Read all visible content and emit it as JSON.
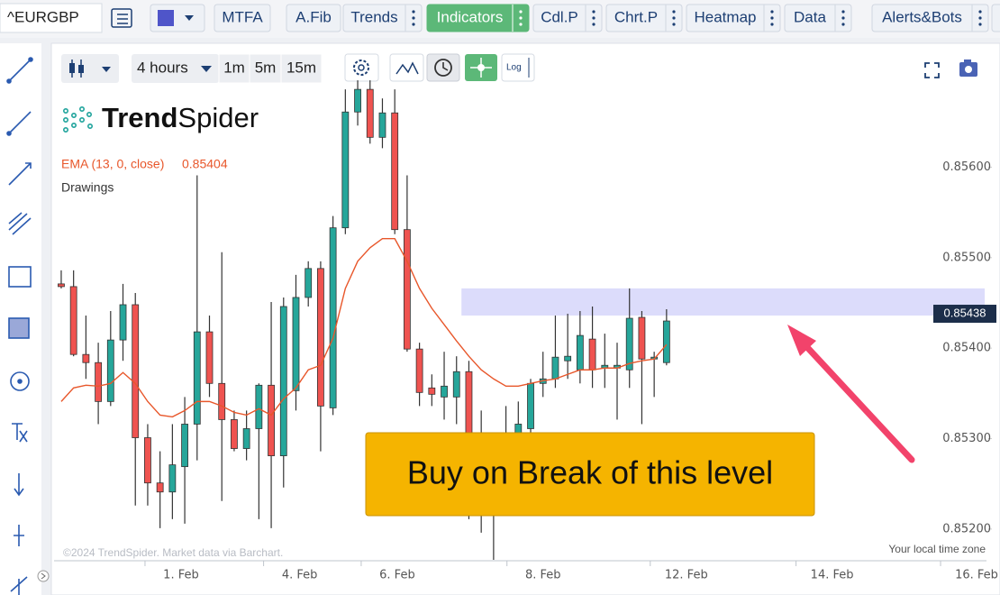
{
  "toolbar": {
    "symbol": "^EURGBP",
    "buttons": [
      "MTFA",
      "A.Fib",
      "Trends",
      "Indicators",
      "Cdl.P",
      "Chrt.P",
      "Heatmap",
      "Data",
      "Alerts&Bots"
    ]
  },
  "chart_controls": {
    "timeframe": "4 hours",
    "intervals": [
      "1m",
      "5m",
      "15m"
    ],
    "log": "Log"
  },
  "logo": {
    "bold": "Trend",
    "light": "Spider"
  },
  "legend": {
    "drawings": "Drawings"
  },
  "footer": {
    "copyright": "©2024 TrendSpider. Market data via Barchart.",
    "timezone": "Your local time zone"
  },
  "callout": "Buy on Break of this level",
  "chart_data": {
    "type": "candlestick",
    "up_color": "#26a69a",
    "down_color": "#ef5350",
    "candles": [
      [
        0.85471,
        0.85486,
        0.85466,
        0.85468
      ],
      [
        0.85468,
        0.85486,
        0.85391,
        0.85393
      ],
      [
        0.85393,
        0.85436,
        0.85366,
        0.85384
      ],
      [
        0.85384,
        0.85406,
        0.85316,
        0.85341
      ],
      [
        0.85341,
        0.85441,
        0.85336,
        0.85409
      ],
      [
        0.85409,
        0.85471,
        0.85386,
        0.85448
      ],
      [
        0.85448,
        0.85461,
        0.85226,
        0.85301
      ],
      [
        0.85301,
        0.85316,
        0.85226,
        0.85251
      ],
      [
        0.85251,
        0.85286,
        0.85201,
        0.85241
      ],
      [
        0.85241,
        0.85316,
        0.85211,
        0.85271
      ],
      [
        0.85269,
        0.85346,
        0.85206,
        0.85316
      ],
      [
        0.85316,
        0.85591,
        0.85276,
        0.85418
      ],
      [
        0.85418,
        0.85436,
        0.85346,
        0.85361
      ],
      [
        0.85361,
        0.85506,
        0.85231,
        0.85321
      ],
      [
        0.85321,
        0.85331,
        0.85286,
        0.85289
      ],
      [
        0.85289,
        0.85331,
        0.85276,
        0.85311
      ],
      [
        0.85311,
        0.85361,
        0.85211,
        0.85359
      ],
      [
        0.85359,
        0.85451,
        0.85201,
        0.85281
      ],
      [
        0.85281,
        0.85456,
        0.85246,
        0.85446
      ],
      [
        0.85353,
        0.85481,
        0.85331,
        0.85456
      ],
      [
        0.85456,
        0.85496,
        0.85446,
        0.85488
      ],
      [
        0.85488,
        0.85496,
        0.85286,
        0.85336
      ],
      [
        0.85334,
        0.85546,
        0.85326,
        0.85533
      ],
      [
        0.85533,
        0.85686,
        0.85526,
        0.85661
      ],
      [
        0.85661,
        0.85696,
        0.85646,
        0.85686
      ],
      [
        0.85686,
        0.85696,
        0.85626,
        0.85633
      ],
      [
        0.85633,
        0.85676,
        0.85621,
        0.8566
      ],
      [
        0.8566,
        0.85686,
        0.85526,
        0.85531
      ],
      [
        0.85531,
        0.85591,
        0.85396,
        0.85399
      ],
      [
        0.85399,
        0.85406,
        0.85336,
        0.85351
      ],
      [
        0.85356,
        0.85371,
        0.85336,
        0.85349
      ],
      [
        0.85346,
        0.85396,
        0.85321,
        0.85358
      ],
      [
        0.85346,
        0.85391,
        0.85316,
        0.85374
      ],
      [
        0.85374,
        0.85386,
        0.85211,
        0.85306
      ],
      [
        0.85306,
        0.85331,
        0.85196,
        0.85286
      ],
      [
        0.85286,
        0.85306,
        0.85166,
        0.85281
      ],
      [
        0.85286,
        0.85336,
        0.85226,
        0.85306
      ],
      [
        0.85306,
        0.85341,
        0.85266,
        0.85316
      ],
      [
        0.85311,
        0.85366,
        0.85306,
        0.85361
      ],
      [
        0.85361,
        0.85396,
        0.85346,
        0.85366
      ],
      [
        0.85366,
        0.85436,
        0.85356,
        0.8539
      ],
      [
        0.85386,
        0.85438,
        0.85366,
        0.85391
      ],
      [
        0.85376,
        0.85441,
        0.85361,
        0.85414
      ],
      [
        0.8541,
        0.85446,
        0.85356,
        0.85376
      ],
      [
        0.85378,
        0.85416,
        0.85356,
        0.85381
      ],
      [
        0.85378,
        0.85406,
        0.85321,
        0.85381
      ],
      [
        0.85376,
        0.85466,
        0.85356,
        0.85433
      ],
      [
        0.85434,
        0.85441,
        0.85316,
        0.85388
      ],
      [
        0.85388,
        0.85396,
        0.85346,
        0.8539
      ],
      [
        0.85384,
        0.85443,
        0.85381,
        0.8543
      ]
    ],
    "series": [
      {
        "name": "EMA (13, 0, close)",
        "color": "#e8572b",
        "last_value": 0.85404,
        "values": [
          0.85341,
          0.85356,
          0.85359,
          0.85358,
          0.85361,
          0.85373,
          0.85361,
          0.85341,
          0.85326,
          0.85324,
          0.85331,
          0.85341,
          0.85341,
          0.85336,
          0.85329,
          0.85326,
          0.85333,
          0.85326,
          0.85344,
          0.85356,
          0.85376,
          0.85381,
          0.85411,
          0.85466,
          0.85496,
          0.85511,
          0.85521,
          0.85521,
          0.85496,
          0.85466,
          0.85444,
          0.85426,
          0.85408,
          0.85391,
          0.85376,
          0.85366,
          0.85358,
          0.85358,
          0.85361,
          0.85364,
          0.85366,
          0.85371,
          0.85376,
          0.85376,
          0.85378,
          0.85378,
          0.85383,
          0.85386,
          0.85388,
          0.85404
        ]
      }
    ],
    "zone": {
      "from": 0.85436,
      "to": 0.85466,
      "x_start": 32.4,
      "color": "#dcdcfb"
    },
    "price_tag": 0.85438,
    "ylim": [
      0.85165,
      0.85725
    ],
    "yticks": [
      {
        "value": 0.852,
        "label": "0.85200"
      },
      {
        "value": 0.853,
        "label": "0.85300"
      },
      {
        "value": 0.854,
        "label": "0.85400"
      },
      {
        "value": 0.855,
        "label": "0.85500"
      },
      {
        "value": 0.856,
        "label": "0.85600"
      }
    ],
    "xlim": [
      -0.58,
      74.9
    ],
    "xticks": [
      {
        "value": 9.7,
        "label": "1. Feb"
      },
      {
        "value": 19.3,
        "label": "4. Feb"
      },
      {
        "value": 27.2,
        "label": "6. Feb"
      },
      {
        "value": 39.0,
        "label": "8. Feb"
      },
      {
        "value": 50.6,
        "label": "12. Feb"
      },
      {
        "value": 62.4,
        "label": "14. Feb"
      },
      {
        "value": 74.1,
        "label": "16. Feb"
      }
    ]
  }
}
